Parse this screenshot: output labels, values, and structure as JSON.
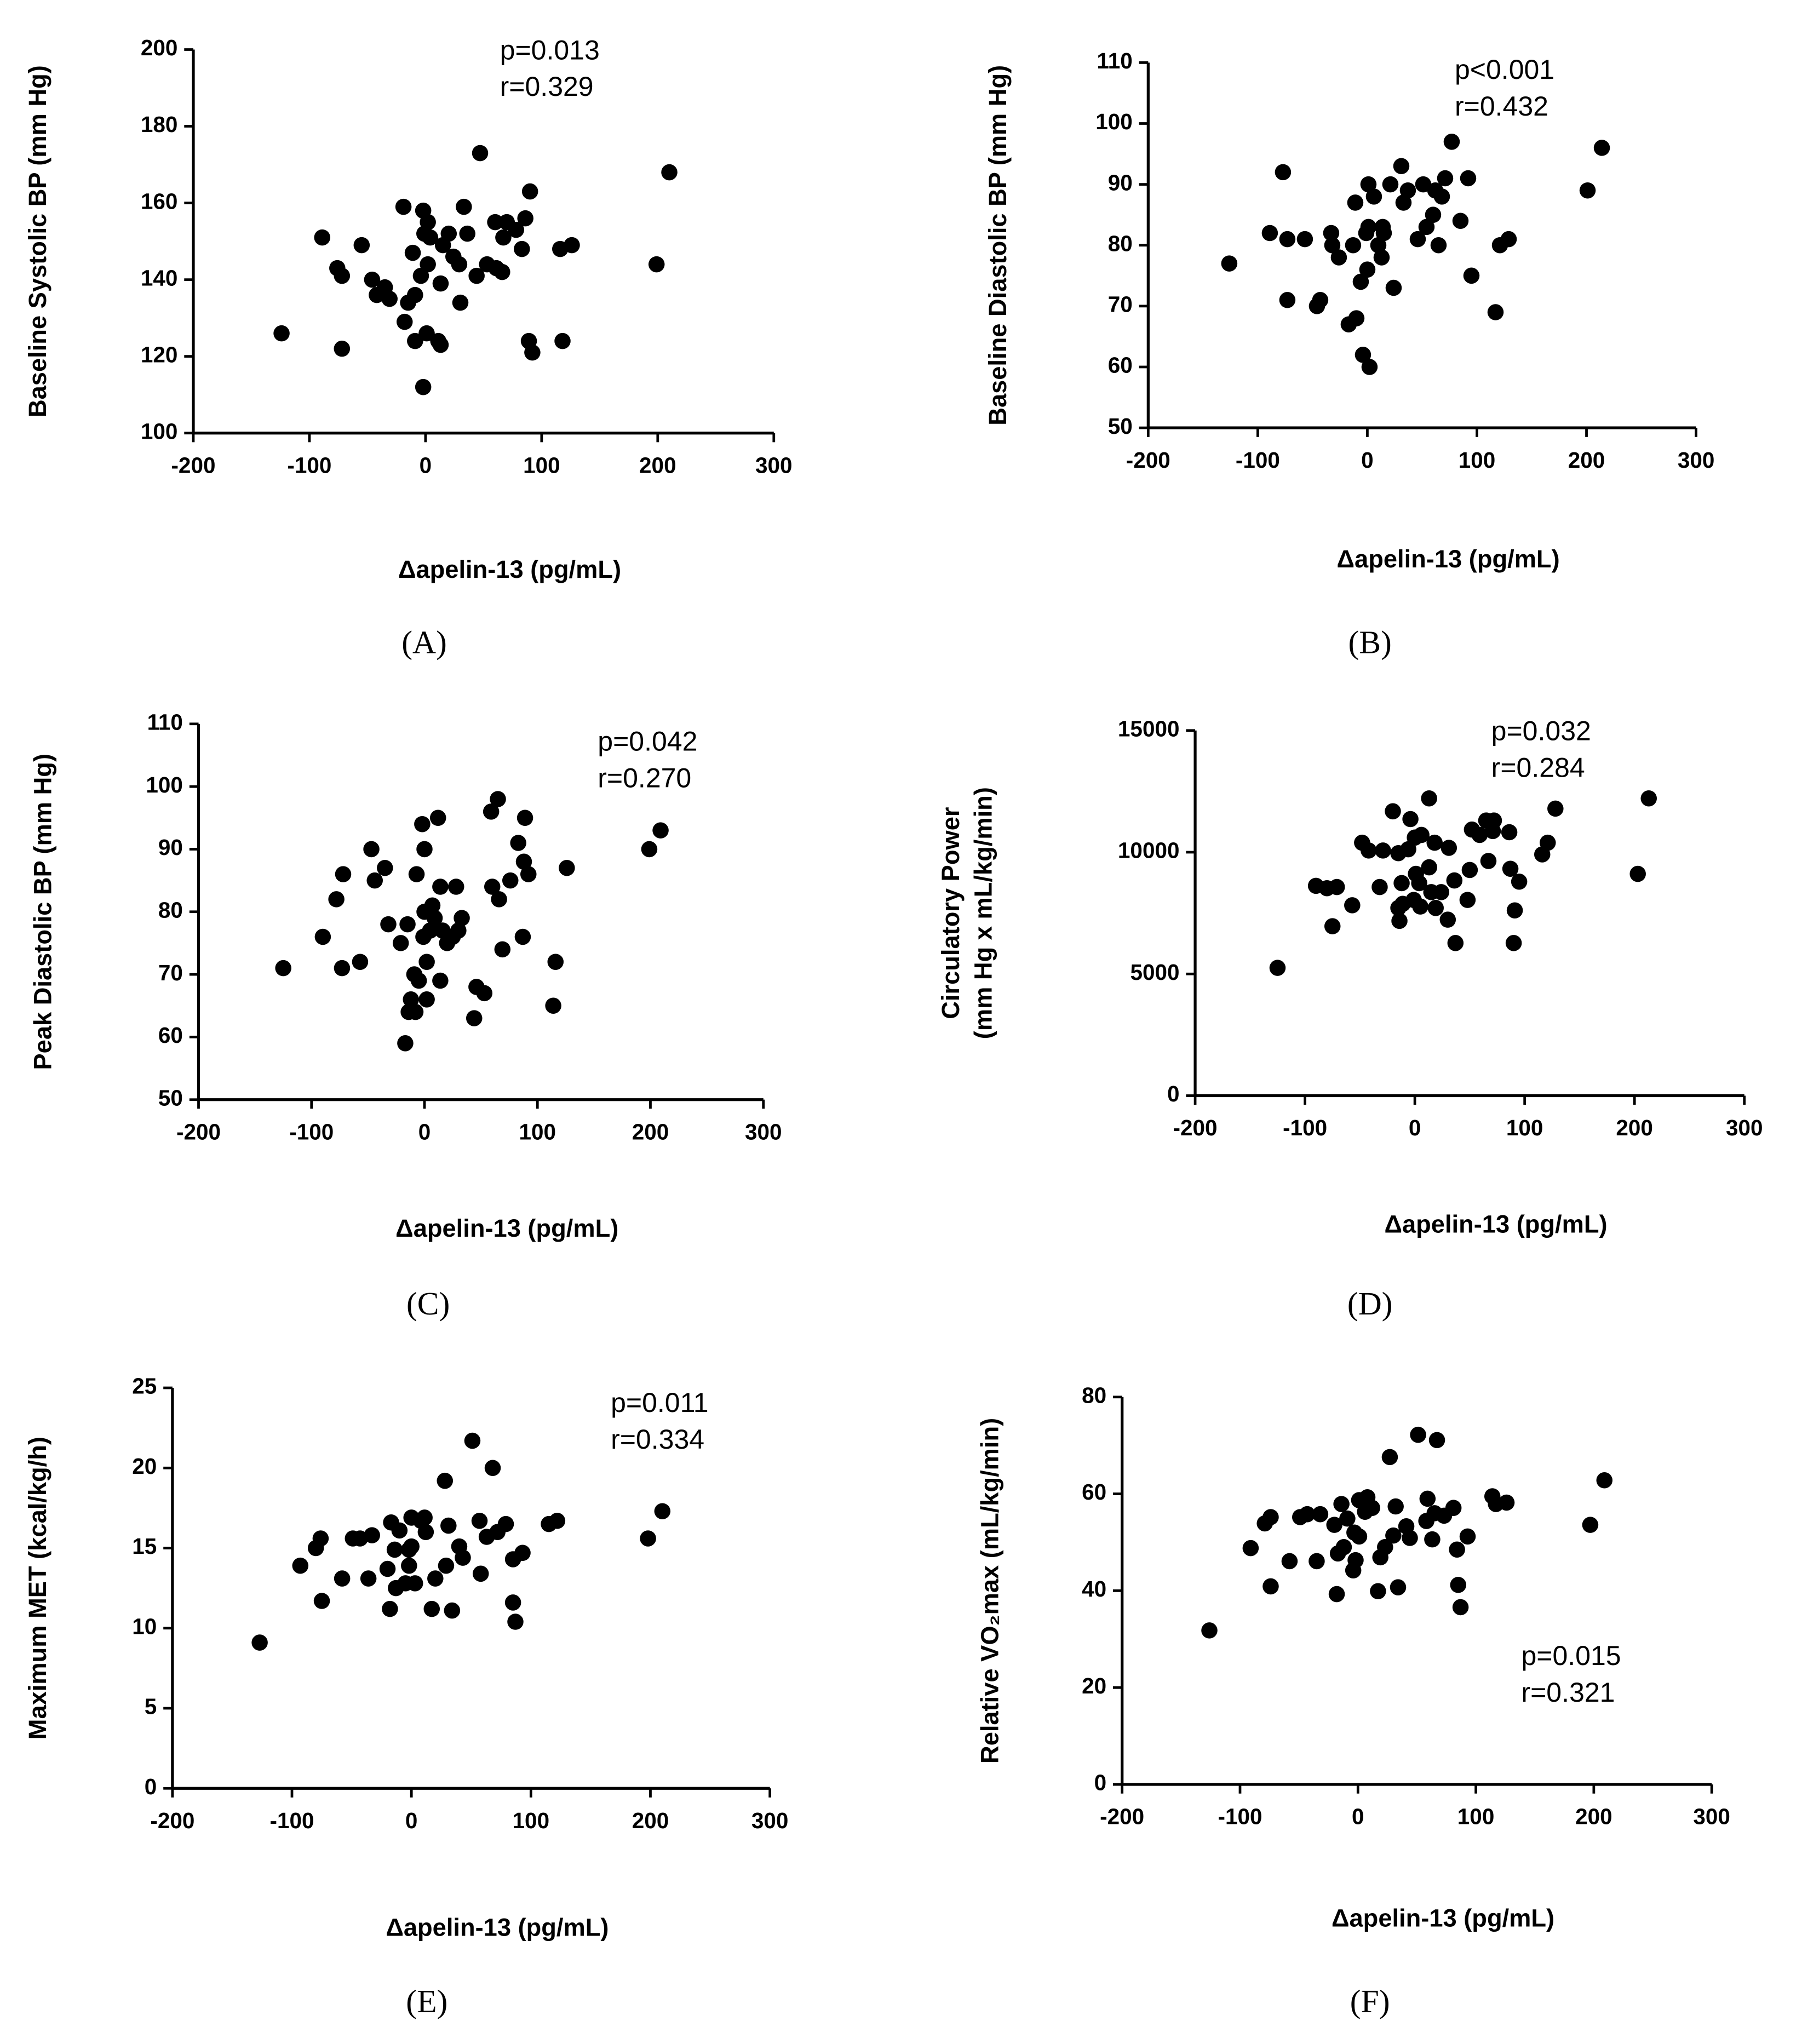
{
  "chart_data": [
    {
      "type": "scatter",
      "panel_label": "(A)",
      "x_label": "Δapelin-13 (pg/mL)",
      "y_label": [
        "Baseline Systolic BP (mm Hg)"
      ],
      "annotations": [
        "p=0.013",
        "r=0.329"
      ],
      "color": "#000000",
      "xlim": [
        -200,
        300
      ],
      "xticks": [
        -200,
        -100,
        0,
        100,
        200,
        300
      ],
      "ylim": [
        100,
        200
      ],
      "yticks": [
        100,
        120,
        140,
        160,
        180,
        200
      ],
      "x": [
        -124,
        -89,
        -76,
        -72,
        -72,
        -55,
        -46,
        -42,
        -35,
        -31,
        -19,
        -18,
        -15,
        -11,
        -9,
        -9,
        -4,
        -2,
        -2,
        -1,
        1,
        2,
        2,
        4,
        11,
        13,
        13,
        15,
        20,
        24,
        29,
        30,
        33,
        36,
        44,
        47,
        53,
        60,
        61,
        66,
        67,
        70,
        78,
        83,
        86,
        89,
        90,
        92,
        116,
        118,
        126,
        199,
        210
      ],
      "values": [
        126,
        151,
        143,
        141,
        122,
        149,
        140,
        136,
        138,
        135,
        159,
        129,
        134,
        147,
        124,
        136,
        141,
        112,
        158,
        152,
        126,
        144,
        155,
        151,
        124,
        123,
        139,
        149,
        152,
        146,
        144,
        134,
        159,
        152,
        141,
        173,
        144,
        155,
        143,
        142,
        151,
        155,
        153,
        148,
        156,
        124,
        163,
        121,
        148,
        124,
        149,
        144,
        168
      ]
    },
    {
      "type": "scatter",
      "panel_label": "(B)",
      "x_label": "Δapelin-13 (pg/mL)",
      "y_label": [
        "Baseline Diastolic BP (mm Hg)"
      ],
      "annotations": [
        "p<0.001",
        "r=0.432"
      ],
      "color": "#000000",
      "xlim": [
        -200,
        300
      ],
      "xticks": [
        -200,
        -100,
        0,
        100,
        200,
        300
      ],
      "ylim": [
        50,
        110
      ],
      "yticks": [
        50,
        60,
        70,
        80,
        90,
        100,
        110
      ],
      "x": [
        -126,
        -77,
        -89,
        -73,
        -73,
        -57,
        -46,
        -43,
        -33,
        -32,
        -26,
        -17,
        -13,
        -11,
        -10,
        -6,
        -4,
        -1,
        1,
        2,
        0,
        1,
        6,
        10,
        13,
        14,
        15,
        21,
        24,
        31,
        33,
        37,
        46,
        51,
        54,
        60,
        62,
        65,
        68,
        71,
        77,
        85,
        92,
        95,
        117,
        121,
        129,
        201,
        214
      ],
      "values": [
        77,
        92,
        82,
        81,
        71,
        81,
        70,
        71,
        82,
        80,
        78,
        67,
        80,
        87,
        68,
        74,
        62,
        82,
        90,
        60,
        76,
        83,
        88,
        80,
        78,
        83,
        82,
        90,
        73,
        93,
        87,
        89,
        81,
        90,
        83,
        85,
        89,
        80,
        88,
        91,
        97,
        84,
        91,
        75,
        69,
        80,
        81,
        89,
        96
      ]
    },
    {
      "type": "scatter",
      "panel_label": "(C)",
      "x_label": "Δapelin-13 (pg/mL)",
      "y_label": [
        "Peak Diastolic BP  (mm Hg)"
      ],
      "annotations": [
        "p=0.042",
        "r=0.270"
      ],
      "color": "#000000",
      "xlim": [
        -200,
        300
      ],
      "xticks": [
        -200,
        -100,
        0,
        100,
        200,
        300
      ],
      "ylim": [
        50,
        110
      ],
      "yticks": [
        50,
        60,
        70,
        80,
        90,
        100,
        110
      ],
      "x": [
        -125,
        -90,
        -78,
        -73,
        -72,
        -57,
        -47,
        -44,
        -35,
        -32,
        -21,
        -17,
        -15,
        -14,
        -12,
        -9,
        -8,
        -7,
        -5,
        -2,
        -1,
        0,
        0,
        2,
        2,
        5,
        7,
        9,
        12,
        14,
        14,
        16,
        20,
        25,
        28,
        30,
        33,
        44,
        46,
        53,
        59,
        60,
        65,
        66,
        69,
        76,
        83,
        87,
        88,
        89,
        92,
        116,
        114,
        126,
        199,
        209
      ],
      "values": [
        71,
        76,
        82,
        71,
        86,
        72,
        90,
        85,
        87,
        78,
        75,
        59,
        78,
        64,
        66,
        70,
        64,
        86,
        69,
        94,
        76,
        90,
        80,
        66,
        72,
        77,
        81,
        79,
        95,
        84,
        69,
        77,
        75,
        76,
        84,
        77,
        79,
        63,
        68,
        67,
        96,
        84,
        98,
        82,
        74,
        85,
        91,
        76,
        88,
        95,
        86,
        72,
        65,
        87,
        90,
        93
      ]
    },
    {
      "type": "scatter",
      "panel_label": "(D)",
      "x_label": "Δapelin-13 (pg/mL)",
      "y_label": [
        "Circulatory Power",
        "(mm Hg x mL/kg/min)"
      ],
      "annotations": [
        "p=0.032",
        "r=0.284"
      ],
      "color": "#000000",
      "xlim": [
        -200,
        300
      ],
      "xticks": [
        -200,
        -100,
        0,
        100,
        200,
        300
      ],
      "ylim": [
        0,
        15000
      ],
      "yticks": [
        0,
        5000,
        10000,
        15000
      ],
      "x": [
        -125,
        -90,
        -80,
        -75,
        -71,
        -57,
        -48,
        -42,
        -32,
        -29,
        -20,
        -15,
        -15,
        -14,
        -12,
        -11,
        -6,
        -4,
        -1,
        0,
        1,
        4,
        5,
        6,
        13,
        13,
        15,
        18,
        19,
        24,
        30,
        31,
        36,
        37,
        48,
        50,
        52,
        59,
        65,
        67,
        71,
        72,
        86,
        87,
        90,
        91,
        95,
        116,
        121,
        128,
        203,
        213
      ],
      "values": [
        5250,
        8620,
        8520,
        6960,
        8570,
        7820,
        10390,
        10070,
        8570,
        10070,
        11680,
        9960,
        7710,
        7180,
        8730,
        7880,
        10120,
        11360,
        8040,
        10600,
        9110,
        8730,
        7770,
        10710,
        9380,
        12210,
        8360,
        10390,
        7710,
        8360,
        7230,
        10180,
        8840,
        6270,
        8040,
        9270,
        10930,
        10710,
        11300,
        9640,
        10870,
        11300,
        10820,
        9320,
        6270,
        7610,
        8790,
        9910,
        10390,
        11790,
        9110,
        12210
      ]
    },
    {
      "type": "scatter",
      "panel_label": "(E)",
      "x_label": "Δapelin-13 (pg/mL)",
      "y_label": [
        "Maximum MET (kcal/kg/h)"
      ],
      "annotations": [
        "p=0.011",
        "r=0.334"
      ],
      "color": "#000000",
      "xlim": [
        -200,
        300
      ],
      "xticks": [
        -200,
        -100,
        0,
        100,
        200,
        300
      ],
      "ylim": [
        0,
        25
      ],
      "yticks": [
        0,
        5,
        10,
        15,
        20,
        25
      ],
      "x": [
        -127,
        -93,
        -80,
        -76,
        -75,
        -58,
        -49,
        -43,
        -36,
        -33,
        -18,
        -20,
        -17,
        -14,
        -13,
        -10,
        -5,
        -2,
        -2,
        0,
        0,
        3,
        8,
        11,
        12,
        17,
        20,
        28,
        29,
        31,
        34,
        40,
        43,
        51,
        57,
        58,
        63,
        68,
        72,
        79,
        85,
        85,
        87,
        93,
        115,
        122,
        198,
        210
      ],
      "values": [
        9.1,
        13.9,
        15,
        15.6,
        11.7,
        13.1,
        15.6,
        15.6,
        13.1,
        15.8,
        11.2,
        13.7,
        16.6,
        14.9,
        12.5,
        16.1,
        12.8,
        13.9,
        14.9,
        15.1,
        16.9,
        12.8,
        16.7,
        16.9,
        16,
        11.2,
        13.1,
        19.2,
        13.9,
        16.4,
        11.1,
        15.1,
        14.4,
        21.7,
        16.7,
        13.4,
        15.7,
        20,
        16,
        16.5,
        11.6,
        14.3,
        10.4,
        14.7,
        16.5,
        16.7,
        15.6,
        17.3
      ]
    },
    {
      "type": "scatter",
      "panel_label": "(F)",
      "x_label": "Δapelin-13 (pg/mL)",
      "y_label": [
        "Relative VO₂max (mL/kg/min)"
      ],
      "annotations": [
        "p=0.015",
        "r=0.321"
      ],
      "color": "#000000",
      "xlim": [
        -200,
        300
      ],
      "xticks": [
        -200,
        -100,
        0,
        100,
        200,
        300
      ],
      "ylim": [
        0,
        80
      ],
      "yticks": [
        0,
        20,
        40,
        60,
        80
      ],
      "x": [
        -126,
        -91,
        -79,
        -74,
        -74,
        -58,
        -49,
        -43,
        -35,
        -32,
        -20,
        -18,
        -17,
        -14,
        -12,
        -9,
        -4,
        -3,
        -2,
        1,
        1,
        6,
        8,
        12,
        17,
        19,
        23,
        27,
        30,
        32,
        34,
        41,
        44,
        51,
        58,
        59,
        63,
        65,
        67,
        73,
        81,
        84,
        85,
        87,
        93,
        114,
        117,
        126,
        197,
        209
      ],
      "values": [
        31.8,
        48.8,
        53.9,
        55.2,
        40.9,
        46.1,
        55.2,
        55.8,
        46.1,
        55.8,
        53.6,
        39.3,
        47.7,
        57.9,
        49,
        54.9,
        44.2,
        52,
        46.3,
        58.7,
        51.2,
        56.3,
        59.3,
        57.1,
        39.9,
        46.9,
        49,
        67.6,
        51.4,
        57.4,
        40.7,
        53.3,
        50.9,
        72.2,
        54.4,
        59,
        50.6,
        56,
        71.1,
        55.5,
        57.1,
        48.5,
        41.2,
        36.6,
        51.2,
        59.5,
        57.9,
        58.2,
        53.6,
        62.8
      ]
    }
  ]
}
